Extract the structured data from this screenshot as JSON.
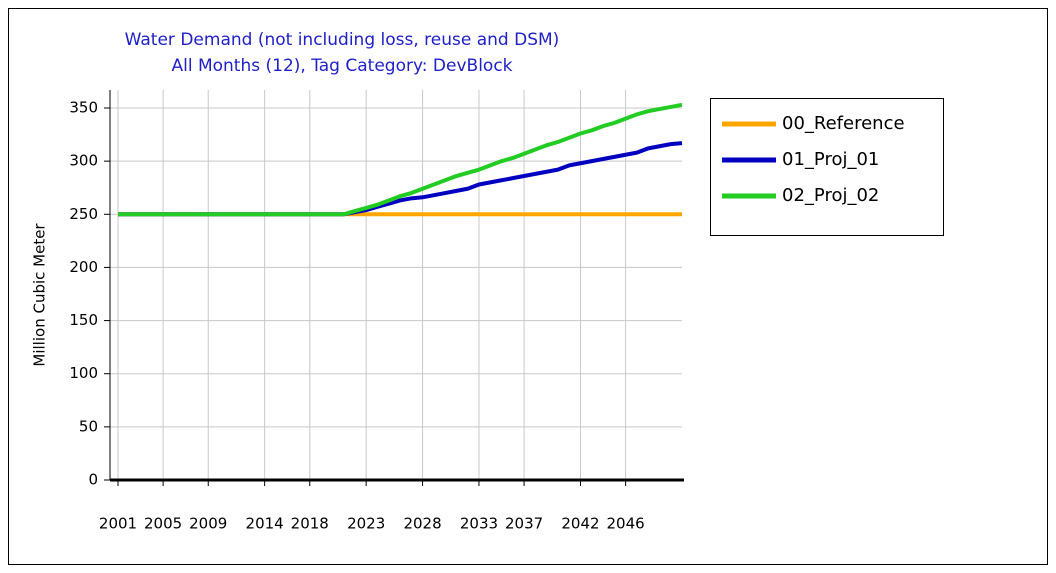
{
  "chart_data": {
    "type": "line",
    "title": "Water Demand (not including loss, reuse and DSM)",
    "subtitle": "All Months (12),  Tag Category: DevBlock",
    "y_label": "Million Cubic Meter",
    "x": [
      2001,
      2002,
      2003,
      2004,
      2005,
      2006,
      2007,
      2008,
      2009,
      2010,
      2011,
      2012,
      2013,
      2014,
      2015,
      2016,
      2017,
      2018,
      2019,
      2020,
      2021,
      2022,
      2023,
      2024,
      2025,
      2026,
      2027,
      2028,
      2029,
      2030,
      2031,
      2032,
      2033,
      2034,
      2035,
      2036,
      2037,
      2038,
      2039,
      2040,
      2041,
      2042,
      2043,
      2044,
      2045,
      2046,
      2047,
      2048,
      2049,
      2050,
      2051
    ],
    "series": [
      {
        "name": "00_Reference",
        "color": "#ffa500",
        "values": [
          250,
          250,
          250,
          250,
          250,
          250,
          250,
          250,
          250,
          250,
          250,
          250,
          250,
          250,
          250,
          250,
          250,
          250,
          250,
          250,
          250,
          250,
          250,
          250,
          250,
          250,
          250,
          250,
          250,
          250,
          250,
          250,
          250,
          250,
          250,
          250,
          250,
          250,
          250,
          250,
          250,
          250,
          250,
          250,
          250,
          250,
          250,
          250,
          250,
          250,
          250
        ]
      },
      {
        "name": "01_Proj_01",
        "color": "#0000c0",
        "values": [
          250,
          250,
          250,
          250,
          250,
          250,
          250,
          250,
          250,
          250,
          250,
          250,
          250,
          250,
          250,
          250,
          250,
          250,
          250,
          250,
          250,
          252,
          254,
          257,
          260,
          263,
          265,
          266,
          268,
          270,
          272,
          274,
          278,
          280,
          282,
          284,
          286,
          288,
          290,
          292,
          296,
          298,
          300,
          302,
          304,
          306,
          308,
          312,
          314,
          316,
          317
        ]
      },
      {
        "name": "02_Proj_02",
        "color": "#22cc22",
        "values": [
          250,
          250,
          250,
          250,
          250,
          250,
          250,
          250,
          250,
          250,
          250,
          250,
          250,
          250,
          250,
          250,
          250,
          250,
          250,
          250,
          250,
          253,
          256,
          259,
          263,
          267,
          270,
          274,
          278,
          282,
          286,
          289,
          292,
          296,
          300,
          303,
          307,
          311,
          315,
          318,
          322,
          326,
          329,
          333,
          336,
          340,
          344,
          347,
          349,
          351,
          353
        ]
      }
    ],
    "xlim": [
      2001,
      2051
    ],
    "xticks": [
      2001,
      2005,
      2009,
      2014,
      2018,
      2023,
      2028,
      2033,
      2037,
      2042,
      2046
    ],
    "ylim": [
      0,
      350
    ],
    "yticks": [
      0,
      50,
      100,
      150,
      200,
      250,
      300,
      350
    ],
    "grid": true,
    "legend": "right"
  }
}
